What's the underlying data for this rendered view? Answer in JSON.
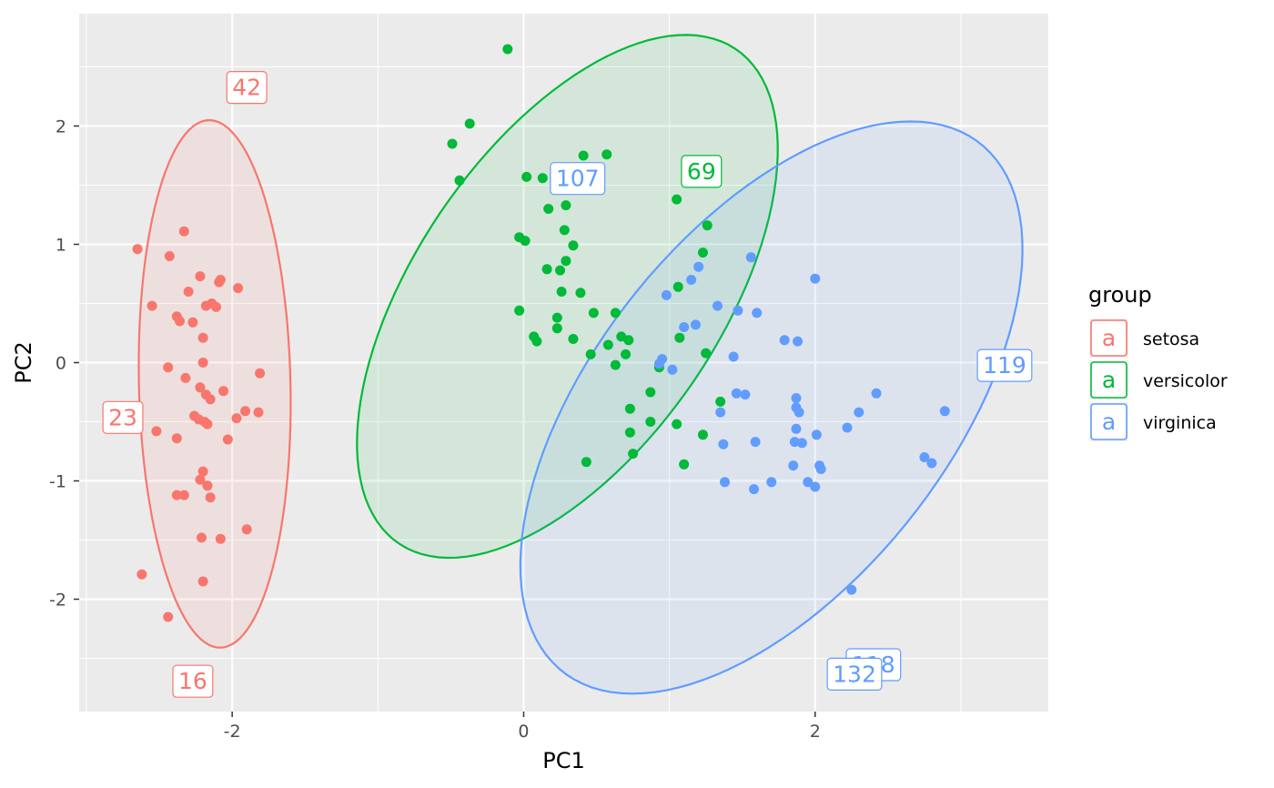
{
  "chart_data": {
    "type": "scatter",
    "xlabel": "PC1",
    "ylabel": "PC2",
    "xlim": [
      -3.05,
      3.6
    ],
    "ylim": [
      -2.95,
      2.95
    ],
    "xticks": [
      -2,
      0,
      2
    ],
    "xtick_labels": [
      "-2",
      "0",
      "2"
    ],
    "yticks": [
      -2,
      -1,
      0,
      1,
      2
    ],
    "ytick_labels": [
      "-2",
      "-1",
      "0",
      "1",
      "2"
    ],
    "grid": true,
    "legend": {
      "title": "group",
      "position": "right",
      "key_glyph": "a"
    },
    "series": [
      {
        "name": "setosa",
        "color": "#F8766D",
        "points": [
          [
            -2.65,
            0.96
          ],
          [
            -2.43,
            0.9
          ],
          [
            -2.33,
            1.11
          ],
          [
            -2.55,
            0.48
          ],
          [
            -2.22,
            0.73
          ],
          [
            -2.3,
            0.6
          ],
          [
            -2.08,
            0.7
          ],
          [
            -2.09,
            0.68
          ],
          [
            -1.96,
            0.63
          ],
          [
            -2.18,
            0.48
          ],
          [
            -2.14,
            0.5
          ],
          [
            -2.11,
            0.47
          ],
          [
            -2.38,
            0.39
          ],
          [
            -2.36,
            0.35
          ],
          [
            -2.27,
            0.34
          ],
          [
            -2.2,
            0.21
          ],
          [
            -2.2,
            0.0
          ],
          [
            -2.44,
            -0.04
          ],
          [
            -2.32,
            -0.13
          ],
          [
            -2.22,
            -0.21
          ],
          [
            -1.81,
            -0.09
          ],
          [
            -2.06,
            -0.24
          ],
          [
            -2.18,
            -0.27
          ],
          [
            -2.15,
            -0.31
          ],
          [
            -2.26,
            -0.45
          ],
          [
            -2.23,
            -0.48
          ],
          [
            -2.19,
            -0.5
          ],
          [
            -2.17,
            -0.52
          ],
          [
            -1.97,
            -0.47
          ],
          [
            -1.91,
            -0.41
          ],
          [
            -1.82,
            -0.42
          ],
          [
            -2.03,
            -0.65
          ],
          [
            -2.52,
            -0.58
          ],
          [
            -2.38,
            -0.64
          ],
          [
            -2.2,
            -0.92
          ],
          [
            -2.22,
            -0.99
          ],
          [
            -2.17,
            -1.04
          ],
          [
            -2.38,
            -1.12
          ],
          [
            -2.33,
            -1.12
          ],
          [
            -2.15,
            -1.14
          ],
          [
            -1.9,
            -1.41
          ],
          [
            -2.21,
            -1.48
          ],
          [
            -2.08,
            -1.49
          ],
          [
            -2.62,
            -1.79
          ],
          [
            -2.2,
            -1.85
          ],
          [
            -2.44,
            -2.15
          ]
        ],
        "ellipse": {
          "center": [
            -2.12,
            -0.18
          ],
          "rx": 0.52,
          "ry": 2.23,
          "angle": 1
        }
      },
      {
        "name": "versicolor",
        "color": "#00BA38",
        "points": [
          [
            -0.11,
            2.65
          ],
          [
            -0.37,
            2.02
          ],
          [
            -0.49,
            1.85
          ],
          [
            -0.44,
            1.54
          ],
          [
            0.41,
            1.75
          ],
          [
            0.57,
            1.76
          ],
          [
            0.02,
            1.57
          ],
          [
            0.13,
            1.56
          ],
          [
            1.05,
            1.38
          ],
          [
            0.17,
            1.3
          ],
          [
            0.29,
            1.33
          ],
          [
            1.26,
            1.16
          ],
          [
            0.28,
            1.12
          ],
          [
            -0.03,
            1.06
          ],
          [
            0.01,
            1.03
          ],
          [
            0.34,
            0.99
          ],
          [
            1.23,
            0.93
          ],
          [
            0.29,
            0.86
          ],
          [
            0.16,
            0.79
          ],
          [
            0.25,
            0.78
          ],
          [
            1.06,
            0.64
          ],
          [
            0.39,
            0.59
          ],
          [
            0.26,
            0.6
          ],
          [
            -0.03,
            0.44
          ],
          [
            0.48,
            0.42
          ],
          [
            0.63,
            0.42
          ],
          [
            0.23,
            0.38
          ],
          [
            0.67,
            0.22
          ],
          [
            1.07,
            0.21
          ],
          [
            0.72,
            0.19
          ],
          [
            0.07,
            0.22
          ],
          [
            0.09,
            0.18
          ],
          [
            0.34,
            0.2
          ],
          [
            0.58,
            0.15
          ],
          [
            0.23,
            0.29
          ],
          [
            1.25,
            0.08
          ],
          [
            0.46,
            0.07
          ],
          [
            0.7,
            0.07
          ],
          [
            0.63,
            -0.02
          ],
          [
            0.93,
            -0.04
          ],
          [
            1.35,
            -0.33
          ],
          [
            0.87,
            -0.25
          ],
          [
            0.73,
            -0.39
          ],
          [
            0.87,
            -0.5
          ],
          [
            1.05,
            -0.52
          ],
          [
            0.73,
            -0.59
          ],
          [
            1.23,
            -0.61
          ],
          [
            0.75,
            -0.77
          ],
          [
            0.43,
            -0.84
          ],
          [
            1.1,
            -0.86
          ]
        ],
        "ellipse": {
          "center": [
            0.3,
            0.56
          ],
          "rx": 1.1,
          "ry": 2.4,
          "angle": -26
        }
      },
      {
        "name": "virginica",
        "color": "#619CFF",
        "points": [
          [
            1.56,
            0.89
          ],
          [
            2.0,
            0.71
          ],
          [
            1.2,
            0.81
          ],
          [
            1.15,
            0.7
          ],
          [
            0.98,
            0.57
          ],
          [
            1.33,
            0.48
          ],
          [
            1.47,
            0.44
          ],
          [
            1.6,
            0.42
          ],
          [
            1.1,
            0.3
          ],
          [
            1.18,
            0.32
          ],
          [
            1.79,
            0.19
          ],
          [
            1.88,
            0.18
          ],
          [
            1.44,
            0.05
          ],
          [
            0.95,
            0.03
          ],
          [
            0.93,
            -0.01
          ],
          [
            1.02,
            -0.06
          ],
          [
            1.46,
            -0.26
          ],
          [
            1.52,
            -0.27
          ],
          [
            1.87,
            -0.3
          ],
          [
            2.42,
            -0.26
          ],
          [
            1.87,
            -0.38
          ],
          [
            1.89,
            -0.42
          ],
          [
            2.3,
            -0.42
          ],
          [
            2.89,
            -0.41
          ],
          [
            1.35,
            -0.42
          ],
          [
            1.87,
            -0.56
          ],
          [
            2.22,
            -0.55
          ],
          [
            2.01,
            -0.61
          ],
          [
            1.86,
            -0.67
          ],
          [
            1.91,
            -0.68
          ],
          [
            1.59,
            -0.67
          ],
          [
            1.37,
            -0.69
          ],
          [
            2.03,
            -0.87
          ],
          [
            1.85,
            -0.87
          ],
          [
            2.04,
            -0.9
          ],
          [
            2.75,
            -0.8
          ],
          [
            2.8,
            -0.85
          ],
          [
            1.38,
            -1.01
          ],
          [
            1.7,
            -1.01
          ],
          [
            1.95,
            -1.01
          ],
          [
            2.0,
            -1.05
          ],
          [
            1.58,
            -1.07
          ],
          [
            2.25,
            -1.92
          ]
        ],
        "ellipse": {
          "center": [
            1.7,
            -0.38
          ],
          "rx": 1.3,
          "ry": 2.67,
          "angle": -29
        }
      }
    ],
    "labels": [
      {
        "text": "42",
        "x": -1.9,
        "y": 2.33,
        "group": "setosa"
      },
      {
        "text": "23",
        "x": -2.75,
        "y": -0.46,
        "group": "setosa"
      },
      {
        "text": "16",
        "x": -2.27,
        "y": -2.69,
        "group": "setosa"
      },
      {
        "text": "69",
        "x": 1.22,
        "y": 1.62,
        "group": "versicolor"
      },
      {
        "text": "107",
        "x": 0.37,
        "y": 1.56,
        "group": "virginica"
      },
      {
        "text": "119",
        "x": 3.3,
        "y": -0.02,
        "group": "virginica"
      },
      {
        "text": "118",
        "x": 2.4,
        "y": -2.55,
        "group": "virginica"
      },
      {
        "text": "132",
        "x": 2.27,
        "y": -2.63,
        "group": "virginica"
      }
    ]
  }
}
